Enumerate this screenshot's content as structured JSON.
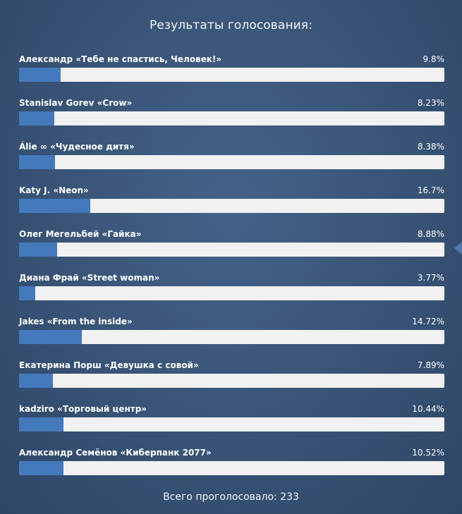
{
  "poll": {
    "title": "Результаты голосования:",
    "total_label": "Всего проголосовало: 233",
    "colors": {
      "bar_fill": "#4479bd",
      "bar_track": "#f1f1f1"
    },
    "options": [
      {
        "label": "Александр «Тебе не спастись, Человек!»",
        "percent_text": "9.8%",
        "percent": 9.8
      },
      {
        "label": "Stanislav Gorev «Crow»",
        "percent_text": "8.23%",
        "percent": 8.23
      },
      {
        "label": "Álie ∞ «Чудесное дитя»",
        "percent_text": "8.38%",
        "percent": 8.38
      },
      {
        "label": "Katy J. «Neon»",
        "percent_text": "16.7%",
        "percent": 16.7
      },
      {
        "label": "Олег Мегельбей «Гайка»",
        "percent_text": "8.88%",
        "percent": 8.88
      },
      {
        "label": "Диана Фрай «Street woman»",
        "percent_text": "3.77%",
        "percent": 3.77
      },
      {
        "label": "Jakes «From the inside»",
        "percent_text": "14.72%",
        "percent": 14.72
      },
      {
        "label": "Екатерина Порш «Девушка с совой»",
        "percent_text": "7.89%",
        "percent": 7.89
      },
      {
        "label": "kadziro «Торговый центр»",
        "percent_text": "10.44%",
        "percent": 10.44
      },
      {
        "label": "Александр Семёнов «Киберпанк 2077»",
        "percent_text": "10.52%",
        "percent": 10.52
      }
    ]
  }
}
